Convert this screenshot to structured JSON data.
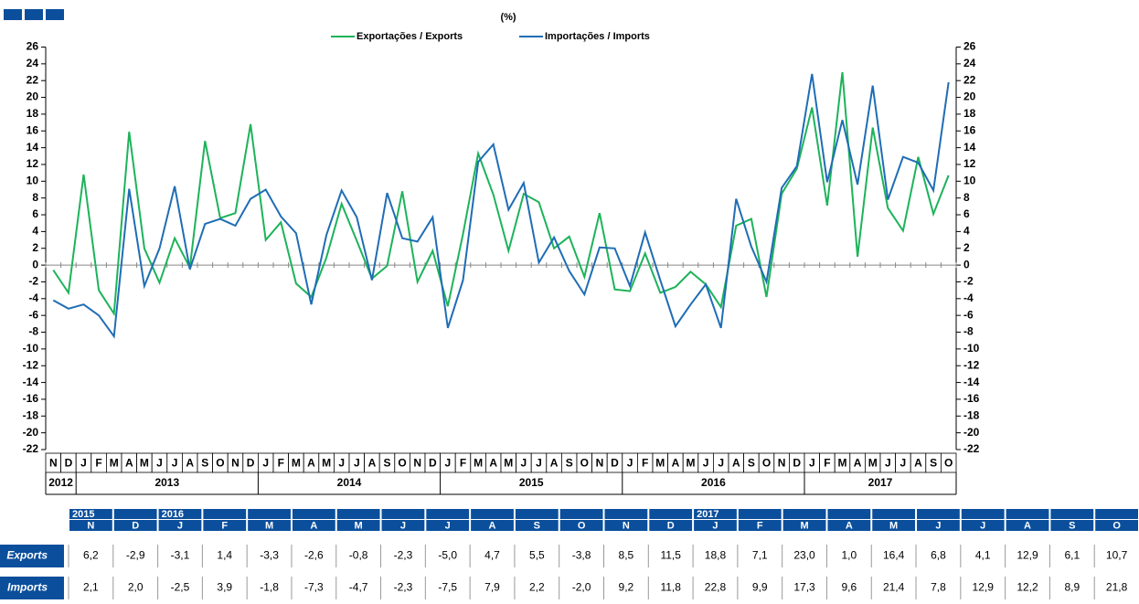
{
  "chart_data": {
    "type": "line",
    "unit_label": "(%)",
    "categories": [
      "N",
      "D",
      "J",
      "F",
      "M",
      "A",
      "M",
      "J",
      "J",
      "A",
      "S",
      "O",
      "N",
      "D",
      "J",
      "F",
      "M",
      "A",
      "M",
      "J",
      "J",
      "A",
      "S",
      "O",
      "N",
      "D",
      "J",
      "F",
      "M",
      "A",
      "M",
      "J",
      "J",
      "A",
      "S",
      "O",
      "N",
      "D",
      "J",
      "F",
      "M",
      "A",
      "M",
      "J",
      "J",
      "A",
      "S",
      "O",
      "N",
      "D",
      "J",
      "F",
      "M",
      "A",
      "M",
      "J",
      "J",
      "A",
      "S",
      "O"
    ],
    "year_labels": [
      "2012",
      "2013",
      "2014",
      "2015",
      "2016",
      "2017"
    ],
    "series": [
      {
        "name": "Exportações / Exports",
        "color": "#1db35a",
        "values": [
          -0.6,
          -3.3,
          10.8,
          -3.0,
          -5.8,
          15.9,
          2.0,
          -2.1,
          3.2,
          -0.3,
          14.8,
          5.6,
          6.2,
          16.8,
          3.0,
          5.1,
          -2.2,
          -3.8,
          0.9,
          7.3,
          2.9,
          -1.6,
          -0.1,
          8.8,
          -2.0,
          1.7,
          -4.9,
          3.7,
          13.3,
          8.4,
          1.7,
          8.5,
          7.5,
          2.0,
          3.4,
          -1.4,
          6.2,
          -2.9,
          -3.1,
          1.4,
          -3.3,
          -2.6,
          -0.8,
          -2.3,
          -5.0,
          4.7,
          5.5,
          -3.8,
          8.5,
          11.5,
          18.8,
          7.1,
          23.0,
          1.0,
          16.4,
          6.8,
          4.1,
          12.9,
          6.1,
          10.7
        ]
      },
      {
        "name": "Importações / Imports",
        "color": "#1f6db5",
        "values": [
          -4.2,
          -5.2,
          -4.7,
          -6.0,
          -8.5,
          9.1,
          -2.5,
          2.0,
          9.4,
          -0.5,
          4.9,
          5.5,
          4.7,
          7.9,
          9.0,
          5.8,
          3.8,
          -4.7,
          3.6,
          8.9,
          5.7,
          -1.8,
          8.6,
          3.2,
          2.8,
          5.7,
          -7.5,
          -1.8,
          12.3,
          14.4,
          6.6,
          9.8,
          0.3,
          3.3,
          -0.7,
          -3.5,
          2.1,
          2.0,
          -2.5,
          3.9,
          -1.8,
          -7.3,
          -4.7,
          -2.3,
          -7.5,
          7.9,
          2.2,
          -2.0,
          9.2,
          11.8,
          22.8,
          9.9,
          17.3,
          9.6,
          21.4,
          7.8,
          12.9,
          12.2,
          8.9,
          21.8
        ]
      }
    ],
    "ylim": [
      -22,
      26
    ],
    "yticks": [
      -22,
      -20,
      -18,
      -16,
      -14,
      -12,
      -10,
      -8,
      -6,
      -4,
      -2,
      0,
      2,
      4,
      6,
      8,
      10,
      12,
      14,
      16,
      18,
      20,
      22,
      24,
      26
    ],
    "table": {
      "columns": [
        {
          "year": "2015",
          "month": "N"
        },
        {
          "month": "D"
        },
        {
          "year": "2016",
          "month": "J"
        },
        {
          "month": "F"
        },
        {
          "month": "M"
        },
        {
          "month": "A"
        },
        {
          "month": "M"
        },
        {
          "month": "J"
        },
        {
          "month": "J"
        },
        {
          "month": "A"
        },
        {
          "month": "S"
        },
        {
          "month": "O"
        },
        {
          "month": "N"
        },
        {
          "month": "D"
        },
        {
          "year": "2017",
          "month": "J"
        },
        {
          "month": "F"
        },
        {
          "month": "M"
        },
        {
          "month": "A"
        },
        {
          "month": "M"
        },
        {
          "month": "J"
        },
        {
          "month": "J"
        },
        {
          "month": "A"
        },
        {
          "month": "S"
        },
        {
          "month": "O"
        }
      ],
      "rows": [
        {
          "label": "Exports",
          "values": [
            "6,2",
            "-2,9",
            "-3,1",
            "1,4",
            "-3,3",
            "-2,6",
            "-0,8",
            "-2,3",
            "-5,0",
            "4,7",
            "5,5",
            "-3,8",
            "8,5",
            "11,5",
            "18,8",
            "7,1",
            "23,0",
            "1,0",
            "16,4",
            "6,8",
            "4,1",
            "12,9",
            "6,1",
            "10,7"
          ]
        },
        {
          "label": "Imports",
          "values": [
            "2,1",
            "2,0",
            "-2,5",
            "3,9",
            "-1,8",
            "-7,3",
            "-4,7",
            "-2,3",
            "-7,5",
            "7,9",
            "2,2",
            "-2,0",
            "9,2",
            "11,8",
            "22,8",
            "9,9",
            "17,3",
            "9,6",
            "21,4",
            "7,8",
            "12,9",
            "12,2",
            "8,9",
            "21,8"
          ]
        }
      ]
    }
  }
}
